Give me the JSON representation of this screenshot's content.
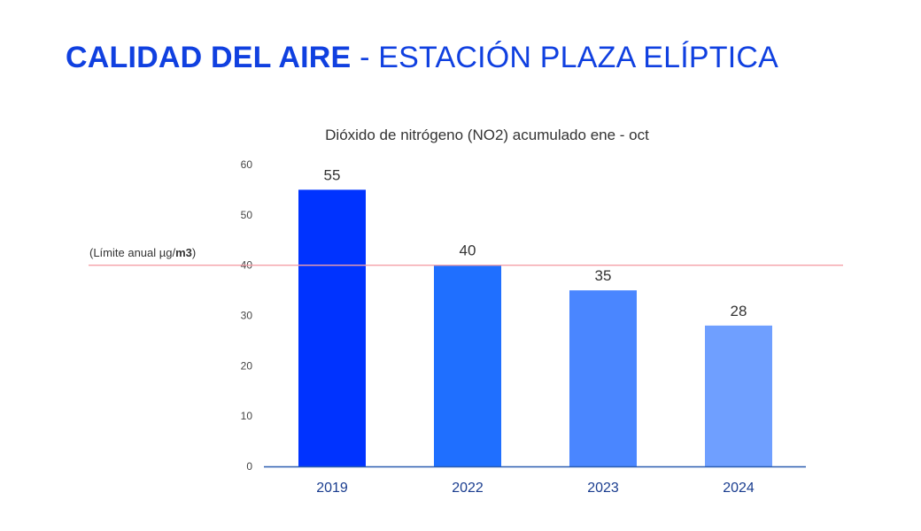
{
  "title": {
    "strong": "CALIDAD DEL AIRE",
    "rest": " - ESTACIÓN PLAZA ELÍPTICA"
  },
  "chart_data": {
    "type": "bar",
    "title": "Dióxido de nitrógeno (NO2) acumulado ene - oct",
    "categories": [
      "2019",
      "2022",
      "2023",
      "2024"
    ],
    "values": [
      55,
      40,
      35,
      28
    ],
    "data_labels": [
      "55",
      "40",
      "35",
      "28"
    ],
    "bar_colors": [
      "#0033ff",
      "#1f6fff",
      "#4a86ff",
      "#6f9fff"
    ],
    "ylim": [
      0,
      60
    ],
    "yticks": [
      0,
      10,
      20,
      30,
      40,
      50,
      60
    ],
    "xlabel": "",
    "ylabel": "",
    "reference_line": {
      "value": 40,
      "label_main": "(Límite anual µg/",
      "label_unit": "m3",
      "label_close": ")",
      "color": "#f4a0a8"
    },
    "axis_color": "#2a5db0"
  }
}
